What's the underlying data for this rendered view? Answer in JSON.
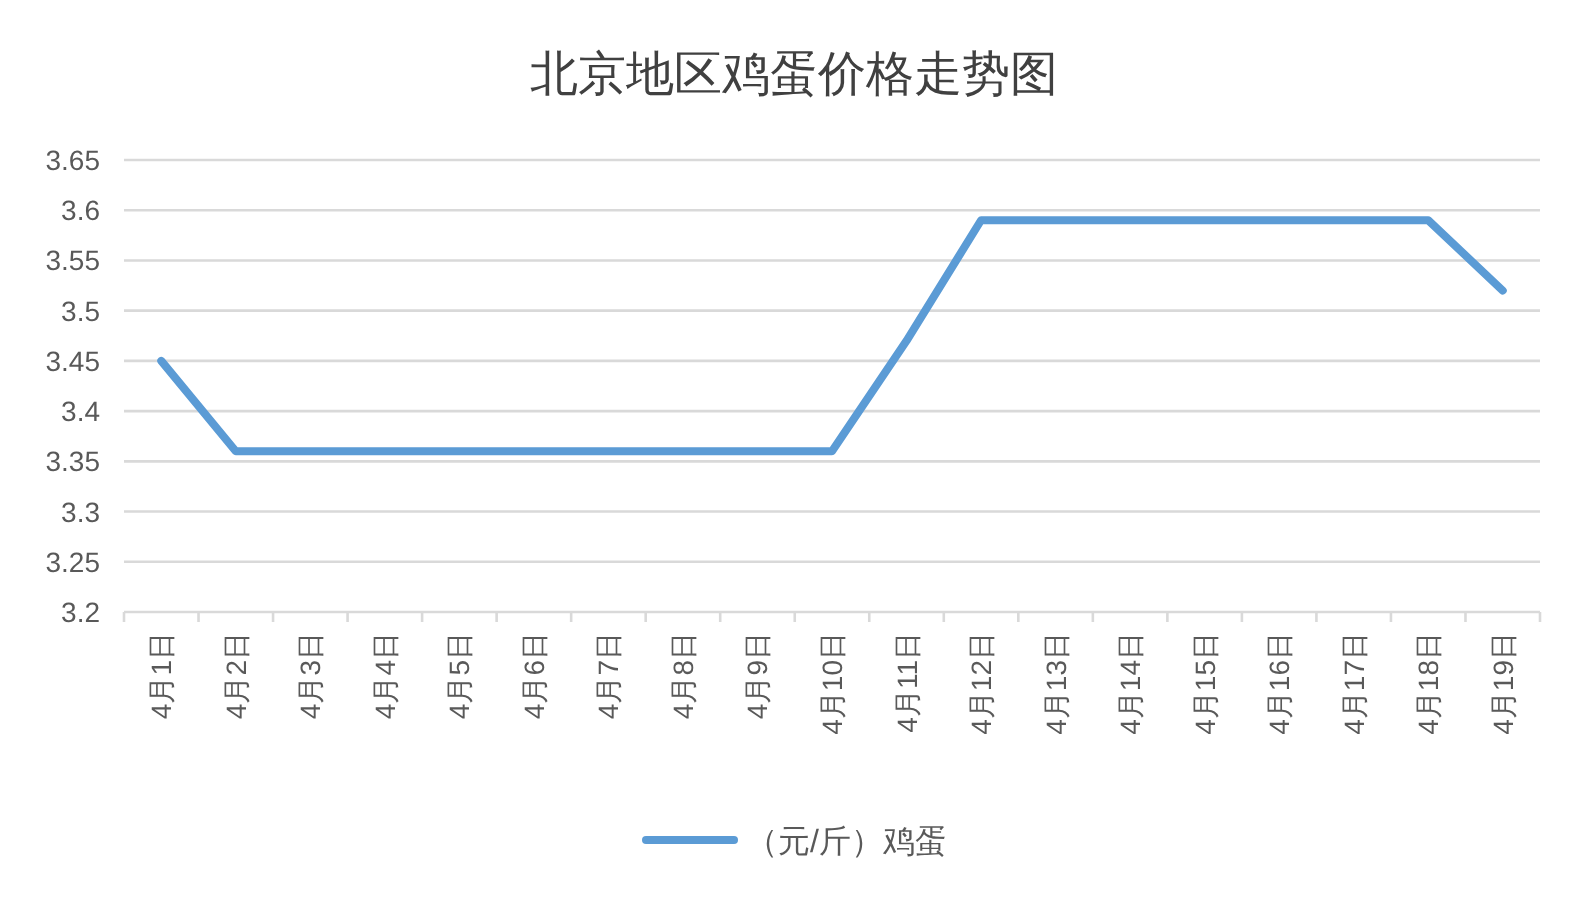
{
  "chart_data": {
    "type": "line",
    "title": "北京地区鸡蛋价格走势图",
    "categories": [
      "4月1日",
      "4月2日",
      "4月3日",
      "4月4日",
      "4月5日",
      "4月6日",
      "4月7日",
      "4月8日",
      "4月9日",
      "4月10日",
      "4月11日",
      "4月12日",
      "4月13日",
      "4月14日",
      "4月15日",
      "4月16日",
      "4月17日",
      "4月18日",
      "4月19日"
    ],
    "series": [
      {
        "name": "（元/斤）鸡蛋",
        "color": "#5b9bd5",
        "values": [
          3.45,
          3.36,
          3.36,
          3.36,
          3.36,
          3.36,
          3.36,
          3.36,
          3.36,
          3.36,
          3.47,
          3.59,
          3.59,
          3.59,
          3.59,
          3.59,
          3.59,
          3.59,
          3.52
        ]
      }
    ],
    "ylim": [
      3.2,
      3.65
    ],
    "yticks": [
      3.2,
      3.25,
      3.3,
      3.35,
      3.4,
      3.45,
      3.5,
      3.55,
      3.6,
      3.65
    ],
    "grid": "y",
    "legend": "bottom",
    "marker": "none",
    "line_style": "solid"
  }
}
